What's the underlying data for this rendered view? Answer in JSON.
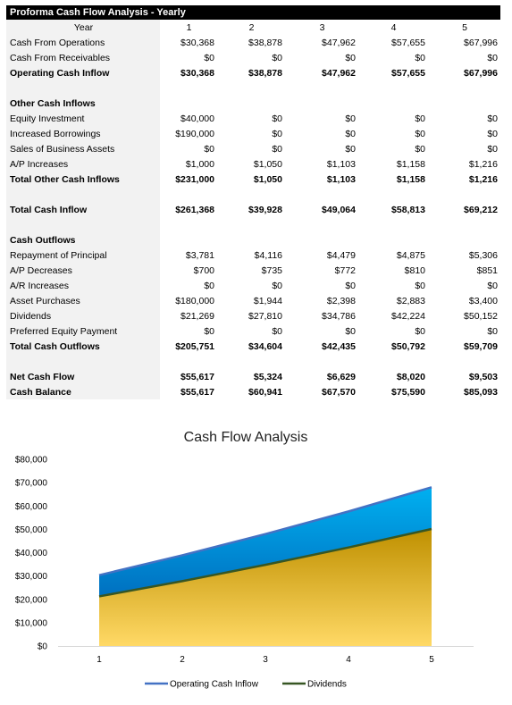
{
  "sheet": {
    "title": "Proforma Cash Flow Analysis - Yearly",
    "header": {
      "label": "Year",
      "years": [
        "1",
        "2",
        "3",
        "4",
        "5"
      ]
    },
    "rows": [
      {
        "label": "Cash From Operations",
        "bold": false,
        "values": [
          "$30,368",
          "$38,878",
          "$47,962",
          "$57,655",
          "$67,996"
        ]
      },
      {
        "label": "Cash From Receivables",
        "bold": false,
        "values": [
          "$0",
          "$0",
          "$0",
          "$0",
          "$0"
        ]
      },
      {
        "label": "Operating Cash Inflow",
        "bold": true,
        "values": [
          "$30,368",
          "$38,878",
          "$47,962",
          "$57,655",
          "$67,996"
        ]
      },
      {
        "spacer": true
      },
      {
        "label": "Other Cash Inflows",
        "bold": true,
        "values": [
          "",
          "",
          "",
          "",
          ""
        ]
      },
      {
        "label": "Equity Investment",
        "bold": false,
        "values": [
          "$40,000",
          "$0",
          "$0",
          "$0",
          "$0"
        ]
      },
      {
        "label": "Increased Borrowings",
        "bold": false,
        "values": [
          "$190,000",
          "$0",
          "$0",
          "$0",
          "$0"
        ]
      },
      {
        "label": "Sales of Business Assets",
        "bold": false,
        "values": [
          "$0",
          "$0",
          "$0",
          "$0",
          "$0"
        ]
      },
      {
        "label": "A/P Increases",
        "bold": false,
        "values": [
          "$1,000",
          "$1,050",
          "$1,103",
          "$1,158",
          "$1,216"
        ]
      },
      {
        "label": "Total Other Cash Inflows",
        "bold": true,
        "values": [
          "$231,000",
          "$1,050",
          "$1,103",
          "$1,158",
          "$1,216"
        ]
      },
      {
        "spacer": true
      },
      {
        "label": "Total Cash Inflow",
        "bold": true,
        "values": [
          "$261,368",
          "$39,928",
          "$49,064",
          "$58,813",
          "$69,212"
        ]
      },
      {
        "spacer": true
      },
      {
        "label": "Cash Outflows",
        "bold": true,
        "values": [
          "",
          "",
          "",
          "",
          ""
        ]
      },
      {
        "label": "Repayment of Principal",
        "bold": false,
        "values": [
          "$3,781",
          "$4,116",
          "$4,479",
          "$4,875",
          "$5,306"
        ]
      },
      {
        "label": "A/P Decreases",
        "bold": false,
        "values": [
          "$700",
          "$735",
          "$772",
          "$810",
          "$851"
        ]
      },
      {
        "label": "A/R Increases",
        "bold": false,
        "values": [
          "$0",
          "$0",
          "$0",
          "$0",
          "$0"
        ]
      },
      {
        "label": "Asset Purchases",
        "bold": false,
        "values": [
          "$180,000",
          "$1,944",
          "$2,398",
          "$2,883",
          "$3,400"
        ]
      },
      {
        "label": "Dividends",
        "bold": false,
        "values": [
          "$21,269",
          "$27,810",
          "$34,786",
          "$42,224",
          "$50,152"
        ]
      },
      {
        "label": "Preferred Equity Payment",
        "bold": false,
        "values": [
          "$0",
          "$0",
          "$0",
          "$0",
          "$0"
        ]
      },
      {
        "label": "Total Cash Outflows",
        "bold": true,
        "values": [
          "$205,751",
          "$34,604",
          "$42,435",
          "$50,792",
          "$59,709"
        ]
      },
      {
        "spacer": true
      },
      {
        "label": "Net Cash Flow",
        "bold": true,
        "values": [
          "$55,617",
          "$5,324",
          "$6,629",
          "$8,020",
          "$9,503"
        ]
      },
      {
        "label": "Cash Balance",
        "bold": true,
        "values": [
          "$55,617",
          "$60,941",
          "$67,570",
          "$75,590",
          "$85,093"
        ]
      }
    ]
  },
  "chart_data": {
    "type": "area",
    "title": "Cash Flow Analysis",
    "x": [
      "1",
      "2",
      "3",
      "4",
      "5"
    ],
    "series": [
      {
        "name": "Operating Cash Inflow",
        "values": [
          30368,
          38878,
          47962,
          57655,
          67996
        ],
        "line_color": "#4472c4",
        "fill_top": "#00b0f0",
        "fill_bottom": "#0070c0"
      },
      {
        "name": "Dividends",
        "values": [
          21269,
          27810,
          34786,
          42224,
          50152
        ],
        "line_color": "#375623",
        "fill_top": "#bf9000",
        "fill_bottom": "#ffd966"
      }
    ],
    "ylim": [
      0,
      80000
    ],
    "yticks": [
      0,
      10000,
      20000,
      30000,
      40000,
      50000,
      60000,
      70000,
      80000
    ],
    "ytick_labels": [
      "$0",
      "$10,000",
      "$20,000",
      "$30,000",
      "$40,000",
      "$50,000",
      "$60,000",
      "$70,000",
      "$80,000"
    ],
    "xlabel": "",
    "ylabel": "",
    "grid": false,
    "legend": "bottom"
  }
}
